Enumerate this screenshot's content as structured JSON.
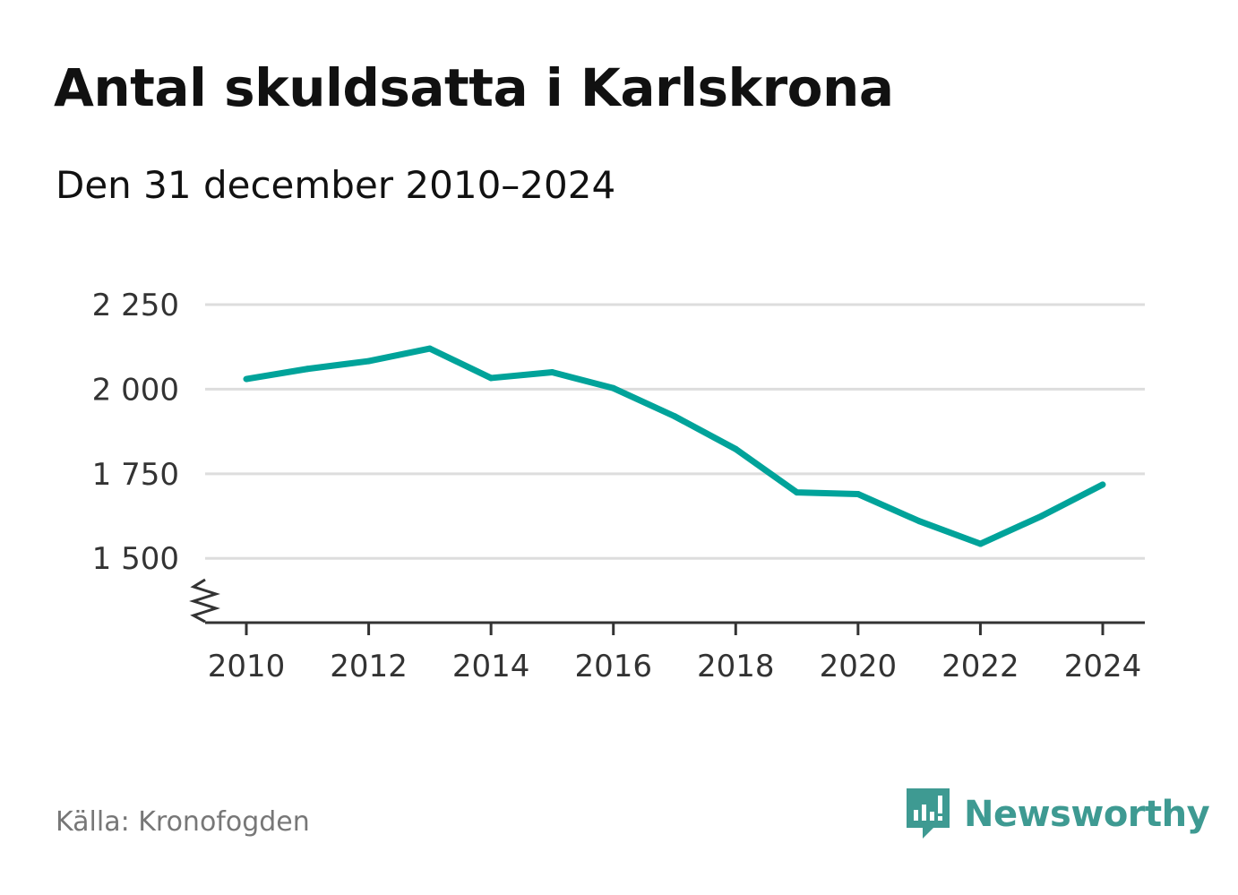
{
  "title": "Antal skuldsatta i Karlskrona",
  "subtitle": "Den 31 december 2010–2024",
  "source": "Källa: Kronofogden",
  "brand": {
    "name": "Newsworthy",
    "icon": "newsworthy-logo-icon",
    "color": "#3e9a92"
  },
  "colors": {
    "line": "#00a39a",
    "grid": "#dddddd",
    "axis": "#333333"
  },
  "chart_data": {
    "type": "line",
    "title": "Antal skuldsatta i Karlskrona",
    "xlabel": "",
    "ylabel": "",
    "x": [
      2010,
      2011,
      2012,
      2013,
      2014,
      2015,
      2016,
      2017,
      2018,
      2019,
      2020,
      2021,
      2022,
      2023,
      2024
    ],
    "series": [
      {
        "name": "Antal skuldsatta",
        "values": [
          2030,
          2060,
          2083,
          2120,
          2033,
          2050,
          2003,
          1920,
          1823,
          1695,
          1690,
          1610,
          1543,
          1625,
          1718
        ]
      }
    ],
    "xticks": [
      2010,
      2012,
      2014,
      2016,
      2018,
      2020,
      2022,
      2024
    ],
    "xtick_labels": [
      "2010",
      "2012",
      "2014",
      "2016",
      "2018",
      "2020",
      "2022",
      "2024"
    ],
    "yticks": [
      1500,
      1750,
      2000,
      2250
    ],
    "ytick_labels": [
      "1 500",
      "1 750",
      "2 000",
      "2 250"
    ],
    "xlim": [
      2010,
      2024
    ],
    "ylim": [
      1310,
      2250
    ],
    "grid": true,
    "axis_break": true
  }
}
